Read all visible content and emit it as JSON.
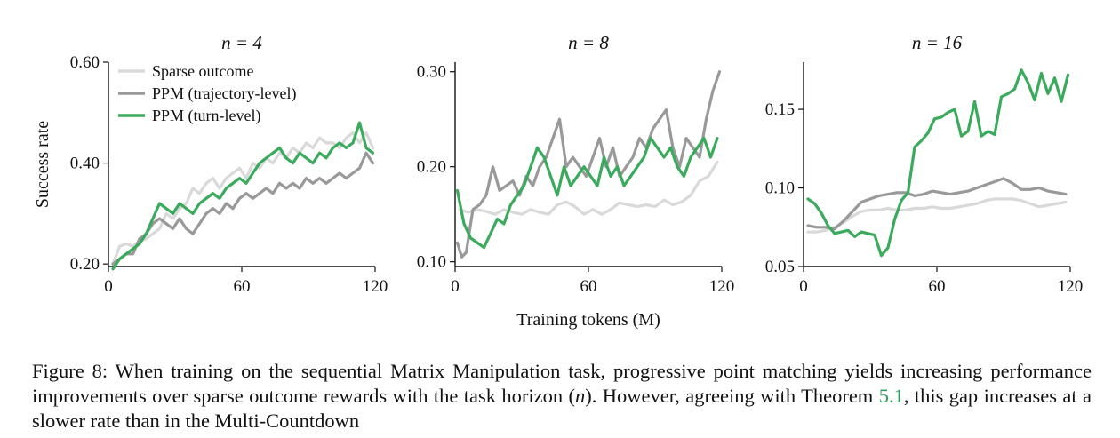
{
  "chart_data": [
    {
      "type": "line",
      "title": "n = 4",
      "xlabel": "",
      "ylabel": "Success rate",
      "xlim": [
        0,
        120
      ],
      "ylim": [
        0.195,
        0.6
      ],
      "xticks": [
        "0",
        "60",
        "120"
      ],
      "yticks": [
        {
          "value": 0.2,
          "label": "0.20"
        },
        {
          "value": 0.4,
          "label": "0.40"
        },
        {
          "value": 0.6,
          "label": "0.60"
        }
      ],
      "legend": {
        "placement": "top-left",
        "entries": [
          "Sparse outcome",
          "PPM (trajectory-level)",
          "PPM (turn-level)"
        ]
      },
      "series": [
        {
          "name": "Sparse outcome",
          "color": "#d9d9d9",
          "x": [
            2,
            5,
            8,
            11,
            14,
            17,
            20,
            23,
            26,
            29,
            32,
            35,
            38,
            41,
            44,
            47,
            50,
            53,
            56,
            59,
            62,
            65,
            68,
            71,
            74,
            77,
            80,
            83,
            86,
            89,
            92,
            95,
            98,
            101,
            104,
            107,
            110,
            113,
            116,
            119
          ],
          "y": [
            0.2,
            0.235,
            0.24,
            0.235,
            0.245,
            0.25,
            0.26,
            0.27,
            0.3,
            0.29,
            0.31,
            0.32,
            0.35,
            0.34,
            0.36,
            0.37,
            0.35,
            0.37,
            0.38,
            0.39,
            0.37,
            0.4,
            0.39,
            0.41,
            0.4,
            0.42,
            0.41,
            0.43,
            0.42,
            0.44,
            0.43,
            0.45,
            0.44,
            0.44,
            0.43,
            0.45,
            0.46,
            0.44,
            0.46,
            0.43
          ]
        },
        {
          "name": "PPM (trajectory-level)",
          "color": "#999999",
          "x": [
            2,
            5,
            8,
            11,
            14,
            17,
            20,
            23,
            26,
            29,
            32,
            35,
            38,
            41,
            44,
            47,
            50,
            53,
            56,
            59,
            62,
            65,
            68,
            71,
            74,
            77,
            80,
            83,
            86,
            89,
            92,
            95,
            98,
            101,
            104,
            107,
            110,
            113,
            116,
            119
          ],
          "y": [
            0.2,
            0.21,
            0.22,
            0.22,
            0.25,
            0.26,
            0.28,
            0.29,
            0.28,
            0.27,
            0.29,
            0.27,
            0.26,
            0.28,
            0.3,
            0.31,
            0.3,
            0.32,
            0.31,
            0.33,
            0.34,
            0.33,
            0.34,
            0.35,
            0.34,
            0.36,
            0.35,
            0.36,
            0.35,
            0.37,
            0.36,
            0.37,
            0.36,
            0.37,
            0.38,
            0.37,
            0.38,
            0.39,
            0.42,
            0.4
          ]
        },
        {
          "name": "PPM (turn-level)",
          "color": "#3aaa5c",
          "x": [
            2,
            5,
            8,
            11,
            14,
            17,
            20,
            23,
            26,
            29,
            32,
            35,
            38,
            41,
            44,
            47,
            50,
            53,
            56,
            59,
            62,
            65,
            68,
            71,
            74,
            77,
            80,
            83,
            86,
            89,
            92,
            95,
            98,
            101,
            104,
            107,
            110,
            113,
            116,
            119
          ],
          "y": [
            0.19,
            0.21,
            0.22,
            0.23,
            0.24,
            0.26,
            0.29,
            0.32,
            0.31,
            0.3,
            0.32,
            0.31,
            0.3,
            0.32,
            0.33,
            0.34,
            0.33,
            0.35,
            0.36,
            0.37,
            0.36,
            0.38,
            0.4,
            0.41,
            0.42,
            0.43,
            0.41,
            0.4,
            0.42,
            0.41,
            0.4,
            0.42,
            0.41,
            0.43,
            0.44,
            0.43,
            0.44,
            0.48,
            0.43,
            0.42
          ]
        }
      ]
    },
    {
      "type": "line",
      "title": "n = 8",
      "xlabel": "Training tokens (M)",
      "ylabel": "",
      "xlim": [
        0,
        120
      ],
      "ylim": [
        0.095,
        0.31
      ],
      "xticks": [
        "0",
        "60",
        "120"
      ],
      "yticks": [
        {
          "value": 0.1,
          "label": "0.10"
        },
        {
          "value": 0.2,
          "label": "0.20"
        },
        {
          "value": 0.3,
          "label": "0.30"
        }
      ],
      "series": [
        {
          "name": "Sparse outcome",
          "color": "#d9d9d9",
          "x": [
            2,
            6,
            10,
            14,
            18,
            22,
            26,
            30,
            34,
            38,
            42,
            46,
            50,
            54,
            58,
            62,
            66,
            70,
            74,
            78,
            82,
            86,
            90,
            94,
            98,
            102,
            106,
            110,
            114,
            118
          ],
          "y": [
            0.155,
            0.152,
            0.155,
            0.153,
            0.15,
            0.155,
            0.152,
            0.15,
            0.155,
            0.152,
            0.15,
            0.16,
            0.163,
            0.158,
            0.15,
            0.155,
            0.15,
            0.155,
            0.162,
            0.16,
            0.158,
            0.16,
            0.158,
            0.165,
            0.16,
            0.163,
            0.17,
            0.185,
            0.19,
            0.205
          ]
        },
        {
          "name": "PPM (trajectory-level)",
          "color": "#999999",
          "x": [
            1,
            3,
            5,
            8,
            11,
            14,
            17,
            20,
            23,
            26,
            29,
            32,
            35,
            38,
            41,
            44,
            47,
            50,
            53,
            56,
            59,
            62,
            65,
            68,
            71,
            74,
            77,
            80,
            83,
            86,
            89,
            92,
            95,
            98,
            101,
            104,
            107,
            110,
            113,
            116,
            119
          ],
          "y": [
            0.12,
            0.105,
            0.11,
            0.155,
            0.16,
            0.17,
            0.2,
            0.175,
            0.18,
            0.185,
            0.17,
            0.19,
            0.18,
            0.2,
            0.21,
            0.23,
            0.25,
            0.2,
            0.21,
            0.2,
            0.19,
            0.21,
            0.23,
            0.2,
            0.22,
            0.19,
            0.2,
            0.21,
            0.23,
            0.22,
            0.24,
            0.25,
            0.26,
            0.22,
            0.2,
            0.23,
            0.22,
            0.21,
            0.25,
            0.28,
            0.3
          ]
        },
        {
          "name": "PPM (turn-level)",
          "color": "#3aaa5c",
          "x": [
            1,
            4,
            7,
            10,
            13,
            16,
            19,
            22,
            25,
            28,
            31,
            34,
            37,
            40,
            43,
            46,
            49,
            52,
            55,
            58,
            61,
            64,
            67,
            70,
            73,
            76,
            79,
            82,
            85,
            88,
            91,
            94,
            97,
            100,
            103,
            106,
            109,
            112,
            115,
            118
          ],
          "y": [
            0.175,
            0.14,
            0.125,
            0.12,
            0.115,
            0.13,
            0.145,
            0.14,
            0.16,
            0.17,
            0.18,
            0.2,
            0.22,
            0.21,
            0.19,
            0.17,
            0.2,
            0.18,
            0.19,
            0.2,
            0.19,
            0.18,
            0.21,
            0.19,
            0.2,
            0.18,
            0.19,
            0.2,
            0.21,
            0.23,
            0.22,
            0.21,
            0.22,
            0.2,
            0.19,
            0.21,
            0.22,
            0.23,
            0.21,
            0.23
          ]
        }
      ]
    },
    {
      "type": "line",
      "title": "n = 16",
      "xlabel": "",
      "ylabel": "",
      "xlim": [
        0,
        120
      ],
      "ylim": [
        0.05,
        0.18
      ],
      "xticks": [
        "0",
        "60",
        "120"
      ],
      "yticks": [
        {
          "value": 0.05,
          "label": "0.05"
        },
        {
          "value": 0.1,
          "label": "0.10"
        },
        {
          "value": 0.15,
          "label": "0.15"
        }
      ],
      "series": [
        {
          "name": "Sparse outcome",
          "color": "#d9d9d9",
          "x": [
            2,
            6,
            10,
            14,
            18,
            22,
            26,
            30,
            34,
            38,
            42,
            46,
            50,
            54,
            58,
            62,
            66,
            70,
            74,
            78,
            82,
            86,
            90,
            94,
            98,
            102,
            106,
            110,
            114,
            118
          ],
          "y": [
            0.072,
            0.072,
            0.073,
            0.075,
            0.078,
            0.082,
            0.085,
            0.086,
            0.086,
            0.087,
            0.086,
            0.086,
            0.087,
            0.087,
            0.088,
            0.087,
            0.087,
            0.088,
            0.089,
            0.09,
            0.092,
            0.093,
            0.093,
            0.093,
            0.092,
            0.09,
            0.088,
            0.089,
            0.09,
            0.091
          ]
        },
        {
          "name": "PPM (trajectory-level)",
          "color": "#999999",
          "x": [
            2,
            6,
            10,
            14,
            18,
            22,
            26,
            30,
            34,
            38,
            42,
            46,
            50,
            54,
            58,
            62,
            66,
            70,
            74,
            78,
            82,
            86,
            90,
            94,
            98,
            102,
            106,
            110,
            114,
            118
          ],
          "y": [
            0.076,
            0.075,
            0.075,
            0.074,
            0.079,
            0.085,
            0.091,
            0.093,
            0.095,
            0.096,
            0.097,
            0.097,
            0.095,
            0.096,
            0.098,
            0.097,
            0.096,
            0.097,
            0.098,
            0.1,
            0.102,
            0.104,
            0.106,
            0.103,
            0.099,
            0.099,
            0.1,
            0.098,
            0.097,
            0.096
          ]
        },
        {
          "name": "PPM (turn-level)",
          "color": "#3aaa5c",
          "x": [
            2,
            5,
            8,
            11,
            14,
            17,
            20,
            23,
            26,
            29,
            32,
            35,
            38,
            41,
            44,
            47,
            50,
            53,
            56,
            59,
            62,
            65,
            68,
            71,
            74,
            77,
            80,
            83,
            86,
            89,
            92,
            95,
            98,
            101,
            104,
            107,
            110,
            113,
            116,
            119
          ],
          "y": [
            0.093,
            0.09,
            0.084,
            0.076,
            0.071,
            0.072,
            0.073,
            0.069,
            0.072,
            0.071,
            0.07,
            0.057,
            0.062,
            0.08,
            0.092,
            0.097,
            0.126,
            0.13,
            0.135,
            0.144,
            0.145,
            0.148,
            0.15,
            0.133,
            0.136,
            0.155,
            0.133,
            0.136,
            0.134,
            0.158,
            0.16,
            0.163,
            0.175,
            0.167,
            0.156,
            0.173,
            0.16,
            0.17,
            0.155,
            0.172
          ]
        }
      ]
    }
  ],
  "caption": {
    "part1": "Figure 8: When training on the sequential Matrix Manipulation task, progressive point matching yields increasing performance improvements over sparse outcome rewards with the task horizon (",
    "var": "n",
    "part2": "). However, agreeing with Theorem ",
    "ref": "5.1",
    "part3": ", this gap increases at a slower rate than in the Multi-Countdown"
  }
}
